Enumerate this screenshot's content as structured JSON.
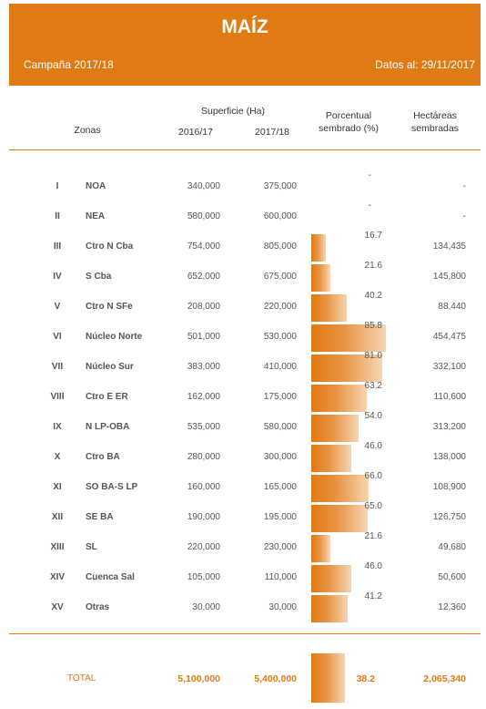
{
  "header": {
    "title": "MAÍZ",
    "campaign": "Campaña 2017/18",
    "date": "Datos al: 29/11/2017"
  },
  "columns": {
    "zonas": "Zonas",
    "superficie": "Superficie (Ha)",
    "year1": "2016/17",
    "year2": "2017/18",
    "porcentual_line1": "Porcentual",
    "porcentual_line2": "sembrado (%)",
    "hectareas_line1": "Hectáreas",
    "hectareas_line2": "sembradas"
  },
  "rows": [
    {
      "roman": "I",
      "zone": "NOA",
      "s2016": "340,000",
      "s2017": "375,000",
      "pct_label": "-",
      "pct": null,
      "ha": "-"
    },
    {
      "roman": "II",
      "zone": "NEA",
      "s2016": "580,000",
      "s2017": "600,000",
      "pct_label": "-",
      "pct": null,
      "ha": "-"
    },
    {
      "roman": "III",
      "zone": "Ctro N Cba",
      "s2016": "754,000",
      "s2017": "805,000",
      "pct_label": "16.7",
      "pct": 16.7,
      "ha": "134,435"
    },
    {
      "roman": "IV",
      "zone": "S Cba",
      "s2016": "652,000",
      "s2017": "675,000",
      "pct_label": "21.6",
      "pct": 21.6,
      "ha": "145,800"
    },
    {
      "roman": "V",
      "zone": "Ctro N SFe",
      "s2016": "208,000",
      "s2017": "220,000",
      "pct_label": "40.2",
      "pct": 40.2,
      "ha": "88,440"
    },
    {
      "roman": "VI",
      "zone": "Núcleo Norte",
      "s2016": "501,000",
      "s2017": "530,000",
      "pct_label": "85.8",
      "pct": 85.8,
      "ha": "454,475"
    },
    {
      "roman": "VII",
      "zone": "Núcleo Sur",
      "s2016": "383,000",
      "s2017": "410,000",
      "pct_label": "81.0",
      "pct": 81.0,
      "ha": "332,100"
    },
    {
      "roman": "VIII",
      "zone": "Ctro E ER",
      "s2016": "162,000",
      "s2017": "175,000",
      "pct_label": "63.2",
      "pct": 63.2,
      "ha": "110,600"
    },
    {
      "roman": "IX",
      "zone": "N LP-OBA",
      "s2016": "535,000",
      "s2017": "580,000",
      "pct_label": "54.0",
      "pct": 54.0,
      "ha": "313,200"
    },
    {
      "roman": "X",
      "zone": "Ctro BA",
      "s2016": "280,000",
      "s2017": "300,000",
      "pct_label": "46.0",
      "pct": 46.0,
      "ha": "138,000"
    },
    {
      "roman": "XI",
      "zone": "SO BA-S LP",
      "s2016": "160,000",
      "s2017": "165,000",
      "pct_label": "66.0",
      "pct": 66.0,
      "ha": "108,900"
    },
    {
      "roman": "XII",
      "zone": "SE BA",
      "s2016": "190,000",
      "s2017": "195,000",
      "pct_label": "65.0",
      "pct": 65.0,
      "ha": "126,750"
    },
    {
      "roman": "XIII",
      "zone": "SL",
      "s2016": "220,000",
      "s2017": "230,000",
      "pct_label": "21.6",
      "pct": 21.6,
      "ha": "49,680"
    },
    {
      "roman": "XIV",
      "zone": "Cuenca Sal",
      "s2016": "105,000",
      "s2017": "110,000",
      "pct_label": "46.0",
      "pct": 46.0,
      "ha": "50,600"
    },
    {
      "roman": "XV",
      "zone": "Otras",
      "s2016": "30,000",
      "s2017": "30,000",
      "pct_label": "41.2",
      "pct": 41.2,
      "ha": "12,360"
    }
  ],
  "total": {
    "label": "TOTAL",
    "s2016": "5,100,000",
    "s2017": "5,400,000",
    "pct_label": "38.2",
    "pct": 38.2,
    "ha": "2,065,340"
  },
  "colors": {
    "accent": "#E07A13"
  },
  "chart_data": {
    "type": "table",
    "title": "MAÍZ",
    "subtitle": "Campaña 2017/18",
    "note": "Datos al: 29/11/2017",
    "columns": [
      "Zonas",
      "2016/17",
      "2017/18",
      "Porcentual sembrado (%)",
      "Hectáreas sembradas"
    ],
    "categories": [
      "NOA",
      "NEA",
      "Ctro N Cba",
      "S Cba",
      "Ctro N SFe",
      "Núcleo Norte",
      "Núcleo Sur",
      "Ctro E ER",
      "N LP-OBA",
      "Ctro BA",
      "SO BA-S LP",
      "SE BA",
      "SL",
      "Cuenca Sal",
      "Otras"
    ],
    "series": [
      {
        "name": "2016/17",
        "values": [
          340000,
          580000,
          754000,
          652000,
          208000,
          501000,
          383000,
          162000,
          535000,
          280000,
          160000,
          190000,
          220000,
          105000,
          30000
        ]
      },
      {
        "name": "2017/18",
        "values": [
          375000,
          600000,
          805000,
          675000,
          220000,
          530000,
          410000,
          175000,
          580000,
          300000,
          165000,
          195000,
          230000,
          110000,
          30000
        ]
      },
      {
        "name": "Porcentual sembrado (%)",
        "values": [
          null,
          null,
          16.7,
          21.6,
          40.2,
          85.8,
          81.0,
          63.2,
          54.0,
          46.0,
          66.0,
          65.0,
          21.6,
          46.0,
          41.2
        ]
      },
      {
        "name": "Hectáreas sembradas",
        "values": [
          null,
          null,
          134435,
          145800,
          88440,
          454475,
          332100,
          110600,
          313200,
          138000,
          108900,
          126750,
          49680,
          50600,
          12360
        ]
      }
    ],
    "total": {
      "2016/17": 5100000,
      "2017/18": 5400000,
      "Porcentual sembrado (%)": 38.2,
      "Hectáreas sembradas": 2065340
    }
  }
}
